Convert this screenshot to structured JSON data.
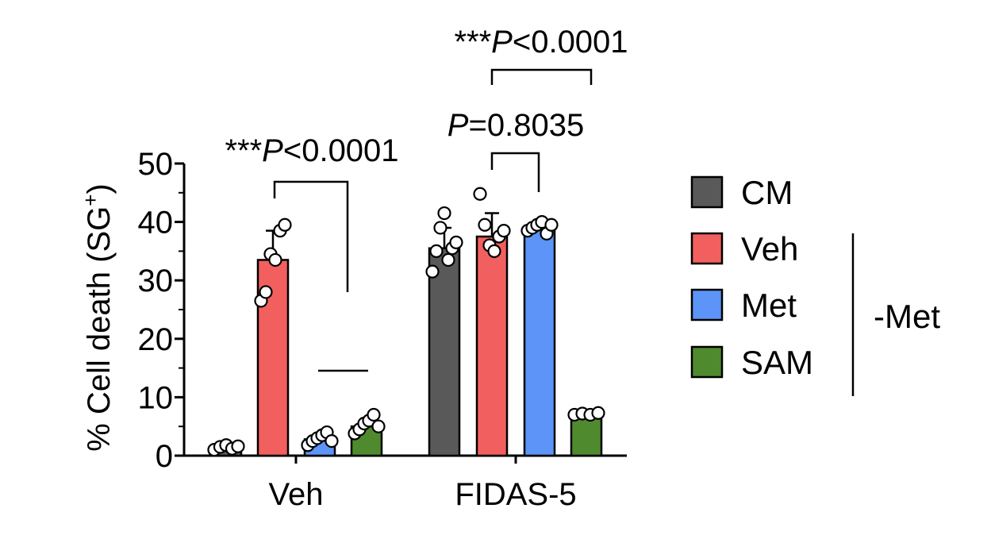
{
  "chart_data": {
    "type": "bar",
    "ylabel": "% Cell death (SG",
    "ylabel_sup": "+",
    "ylabel_close": ")",
    "ylim": [
      0,
      50
    ],
    "yticks": [
      0,
      10,
      20,
      30,
      40,
      50
    ],
    "groups": [
      "Veh",
      "FIDAS-5"
    ],
    "legend_title": "-Met",
    "series": [
      {
        "name": "CM",
        "color": "#595959",
        "values": [
          1.5,
          35.5
        ],
        "errors": [
          0,
          3.5
        ],
        "points": [
          [
            1.0,
            1.5,
            1.8,
            1.2,
            1.6
          ],
          [
            31.5,
            35.0,
            39.0,
            41.5,
            33.5,
            35.5,
            36.5
          ]
        ]
      },
      {
        "name": "Veh",
        "color": "#f25f5f",
        "values": [
          33.5,
          37.5
        ],
        "errors": [
          5.0,
          4.0
        ],
        "points": [
          [
            26.5,
            28.0,
            34.5,
            33.5,
            38.5,
            39.5
          ],
          [
            44.8,
            39.5,
            36.0,
            35.0,
            37.5,
            38.5
          ]
        ]
      },
      {
        "name": "Met",
        "color": "#5c94f7",
        "values": [
          2.8,
          39.0
        ],
        "errors": [
          0,
          0
        ],
        "points": [
          [
            1.8,
            2.5,
            3.0,
            3.5,
            4.0,
            2.5
          ],
          [
            38.5,
            39.0,
            39.5,
            40.0,
            38.0,
            39.5
          ]
        ]
      },
      {
        "name": "SAM",
        "color": "#4f8a2e",
        "values": [
          5.0,
          7.0
        ],
        "errors": [
          0,
          0
        ],
        "points": [
          [
            3.8,
            4.5,
            5.5,
            6.0,
            7.0,
            5.0
          ],
          [
            7.0,
            7.2,
            7.0,
            7.3
          ]
        ]
      }
    ],
    "annotations": [
      {
        "stars": "***",
        "italic": "P",
        "text": "<0.0001",
        "label": "Veh group: Veh vs SAM"
      },
      {
        "stars": "",
        "italic": "P",
        "text": "=0.8035",
        "label": "FIDAS-5: Veh vs Met"
      },
      {
        "stars": "***",
        "italic": "P",
        "text": "<0.0001",
        "label": "FIDAS-5: Veh vs SAM"
      }
    ]
  }
}
